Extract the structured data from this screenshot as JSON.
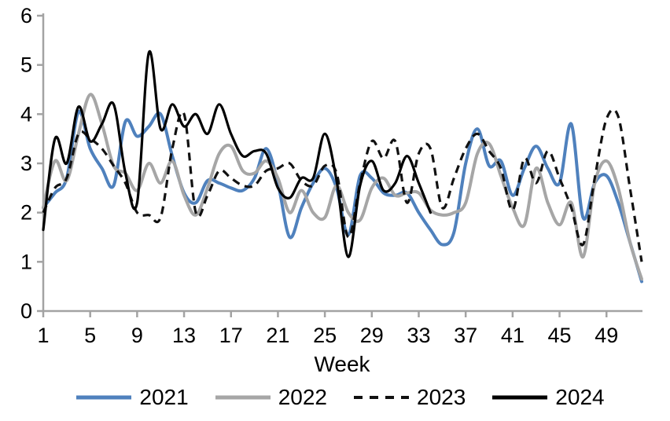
{
  "axis_color": "#a3a3a3",
  "text_color": "#000000",
  "chart_data": {
    "type": "line",
    "title": "",
    "xlabel": "Week",
    "ylabel": "",
    "x_range": [
      1,
      52
    ],
    "ylim": [
      0,
      6
    ],
    "x_ticks": [
      1,
      5,
      9,
      13,
      17,
      21,
      25,
      29,
      33,
      37,
      41,
      45,
      49
    ],
    "y_ticks": [
      0,
      1,
      2,
      3,
      4,
      5,
      6
    ],
    "grid": false,
    "legend_position": "bottom",
    "series": [
      {
        "name": "2021",
        "color": "#4f81bd",
        "style": "solid",
        "start_week": 1,
        "values": [
          2.1,
          2.4,
          2.7,
          4.05,
          3.3,
          2.9,
          2.55,
          3.85,
          3.55,
          3.75,
          4.0,
          3.15,
          2.4,
          2.2,
          2.65,
          2.6,
          2.5,
          2.45,
          2.7,
          3.3,
          2.6,
          1.5,
          2.1,
          2.6,
          2.9,
          2.5,
          1.55,
          2.75,
          2.7,
          2.4,
          2.35,
          2.4,
          2.0,
          1.65,
          1.35,
          1.6,
          3.0,
          3.7,
          2.95,
          3.05,
          2.35,
          2.9,
          3.35,
          2.9,
          2.6,
          3.8,
          1.9,
          2.6,
          2.75,
          2.2,
          1.4,
          0.6
        ]
      },
      {
        "name": "2022",
        "color": "#a6a6a6",
        "style": "solid",
        "start_week": 1,
        "values": [
          2.1,
          3.05,
          2.65,
          3.6,
          4.4,
          3.8,
          2.95,
          2.8,
          2.45,
          3.0,
          2.6,
          3.05,
          2.35,
          1.95,
          2.5,
          3.2,
          3.35,
          2.85,
          2.8,
          3.05,
          2.7,
          2.0,
          2.45,
          2.0,
          1.9,
          2.55,
          2.0,
          1.85,
          2.5,
          2.7,
          2.35,
          2.4,
          2.4,
          2.05,
          1.95,
          2.0,
          2.2,
          3.2,
          3.4,
          2.75,
          2.1,
          1.75,
          2.9,
          2.2,
          1.75,
          2.2,
          1.1,
          2.6,
          3.05,
          2.5,
          1.4,
          0.65
        ]
      },
      {
        "name": "2023",
        "color": "#111111",
        "style": "dashed",
        "start_week": 1,
        "values": [
          2.0,
          2.5,
          2.7,
          3.6,
          3.5,
          3.3,
          2.95,
          2.6,
          2.0,
          1.95,
          1.9,
          3.3,
          4.0,
          2.0,
          2.35,
          2.85,
          2.7,
          2.55,
          2.55,
          2.85,
          2.9,
          3.0,
          2.65,
          2.55,
          2.95,
          2.8,
          1.5,
          2.6,
          3.45,
          3.1,
          3.45,
          2.2,
          3.2,
          3.3,
          2.1,
          2.7,
          3.3,
          3.6,
          3.25,
          2.9,
          2.05,
          3.1,
          2.6,
          3.25,
          2.7,
          2.1,
          1.35,
          2.7,
          3.9,
          3.95,
          2.5,
          1.0
        ]
      },
      {
        "name": "2024",
        "color": "#000000",
        "style": "solid",
        "start_week": 1,
        "values": [
          1.65,
          3.5,
          3.0,
          4.15,
          3.45,
          3.8,
          4.2,
          2.8,
          2.2,
          5.25,
          3.7,
          4.2,
          3.75,
          4.0,
          3.6,
          4.2,
          3.6,
          3.15,
          3.25,
          3.2,
          2.5,
          2.3,
          2.7,
          2.7,
          3.6,
          2.65,
          1.1,
          2.55,
          3.05,
          2.45,
          2.6,
          3.15,
          2.6,
          2.0
        ]
      }
    ]
  }
}
